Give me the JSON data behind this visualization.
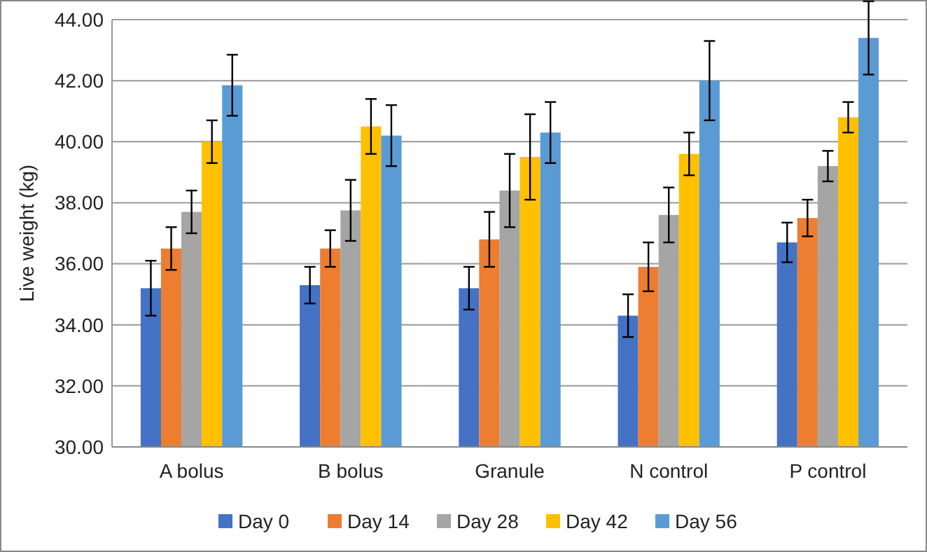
{
  "chart_data": {
    "type": "bar",
    "ylabel": "Live weight (kg)",
    "categories": [
      "A bolus",
      "B bolus",
      "Granule",
      "N control",
      "P control"
    ],
    "series": [
      {
        "name": "Day 0",
        "color": "#4472c4",
        "values": [
          35.2,
          35.3,
          35.2,
          34.3,
          36.7
        ],
        "errors": [
          0.9,
          0.6,
          0.7,
          0.7,
          0.65
        ]
      },
      {
        "name": "Day 14",
        "color": "#ed7d31",
        "values": [
          36.5,
          36.5,
          36.8,
          35.9,
          37.5
        ],
        "errors": [
          0.7,
          0.6,
          0.9,
          0.8,
          0.6
        ]
      },
      {
        "name": "Day 28",
        "color": "#a5a5a5",
        "values": [
          37.7,
          37.75,
          38.4,
          37.6,
          39.2
        ],
        "errors": [
          0.7,
          1.0,
          1.2,
          0.9,
          0.5
        ]
      },
      {
        "name": "Day 42",
        "color": "#ffc000",
        "values": [
          40.0,
          40.5,
          39.5,
          39.6,
          40.8
        ],
        "errors": [
          0.7,
          0.9,
          1.4,
          0.7,
          0.5
        ]
      },
      {
        "name": "Day 56",
        "color": "#5b9bd5",
        "values": [
          41.85,
          40.2,
          40.3,
          42.0,
          43.4
        ],
        "errors": [
          1.0,
          1.0,
          1.0,
          1.3,
          1.2
        ]
      }
    ],
    "ylim": [
      30,
      44
    ],
    "yticks": [
      {
        "value": 30,
        "label": "30.00"
      },
      {
        "value": 32,
        "label": "32.00"
      },
      {
        "value": 34,
        "label": "34.00"
      },
      {
        "value": 36,
        "label": "36.00"
      },
      {
        "value": 38,
        "label": "38.00"
      },
      {
        "value": 40,
        "label": "40.00"
      },
      {
        "value": 42,
        "label": "42.00"
      },
      {
        "value": 44,
        "label": "44.00"
      }
    ],
    "grid": "y",
    "legend": "bottom"
  }
}
